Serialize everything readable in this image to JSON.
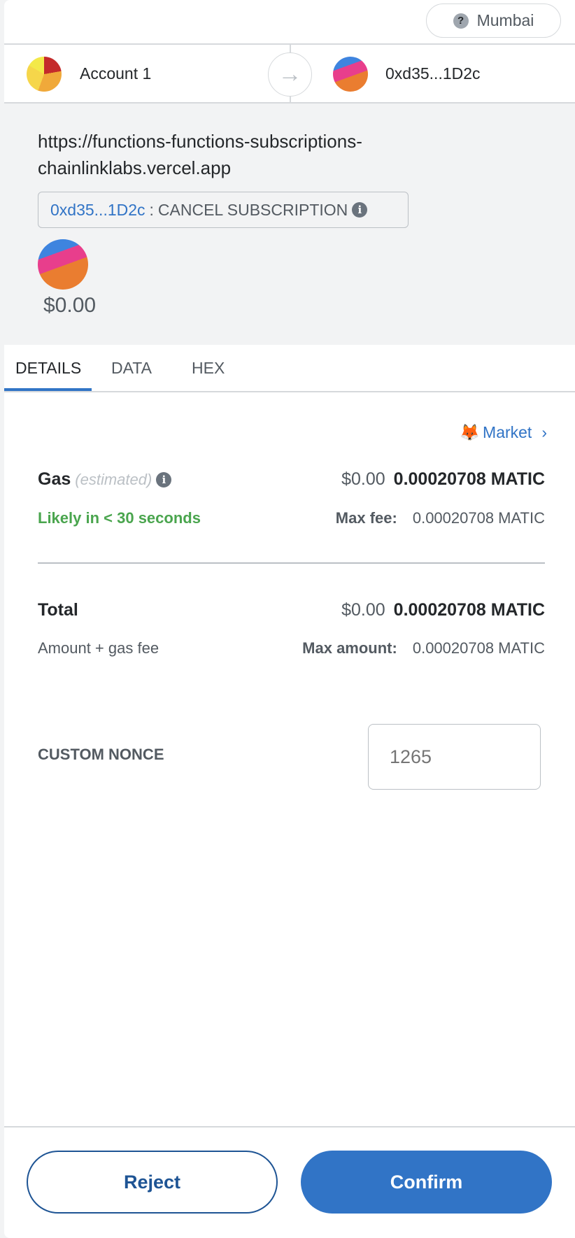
{
  "network": {
    "label": "Mumbai",
    "icon": "question-icon"
  },
  "from": {
    "name": "Account 1"
  },
  "to": {
    "address": "0xd35...1D2c"
  },
  "origin": {
    "line1": "https://functions-functions-subscriptions-",
    "line2": "chainlinklabs.vercel.app"
  },
  "method": {
    "address": "0xd35...1D2c",
    "separator": ":",
    "name": "CANCEL SUBSCRIPTION"
  },
  "value_usd": "$0.00",
  "tabs": [
    {
      "label": "DETAILS",
      "active": true
    },
    {
      "label": "DATA"
    },
    {
      "label": "HEX"
    }
  ],
  "market": {
    "label": "Market",
    "icon": "fox-icon"
  },
  "gas": {
    "label": "Gas",
    "estimated": "(estimated)",
    "usd": "$0.00",
    "amount": "0.00020708 MATIC",
    "timing": "Likely in < 30 seconds",
    "max_fee_label": "Max fee:",
    "max_fee": "0.00020708 MATIC"
  },
  "total": {
    "label": "Total",
    "usd": "$0.00",
    "amount": "0.00020708 MATIC",
    "sub": "Amount + gas fee",
    "max_label": "Max amount:",
    "max": "0.00020708 MATIC"
  },
  "nonce": {
    "label": "CUSTOM NONCE",
    "placeholder": "1265"
  },
  "actions": {
    "reject": "Reject",
    "confirm": "Confirm"
  },
  "colors": {
    "primary": "#3174c6",
    "success": "#4aa54e"
  }
}
